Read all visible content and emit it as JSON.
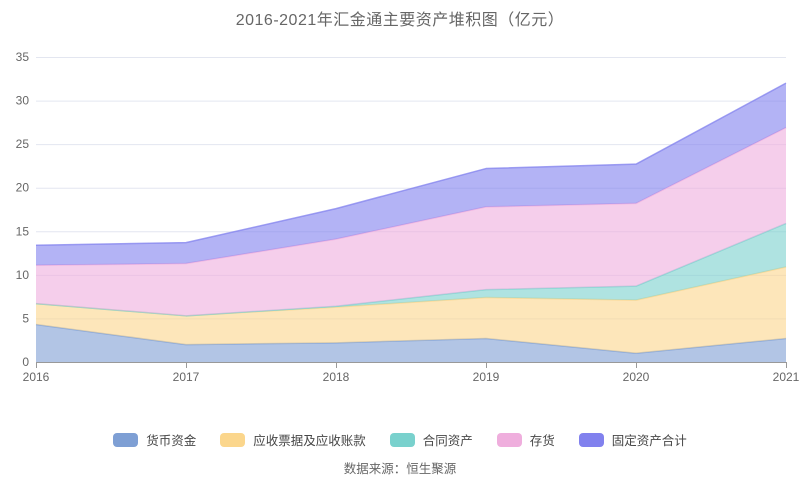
{
  "title": "2016-2021年汇金通主要资产堆积图（亿元）",
  "source": "数据来源：恒生聚源",
  "chart_data": {
    "type": "area",
    "stacked": true,
    "title": "2016-2021年汇金通主要资产堆积图（亿元）",
    "unit": "亿元",
    "categories": [
      "2016",
      "2017",
      "2018",
      "2019",
      "2020",
      "2021"
    ],
    "series": [
      {
        "name": "货币资金",
        "color": "#7E9FD4",
        "values": [
          4.3,
          2.0,
          2.2,
          2.7,
          1.0,
          2.7
        ]
      },
      {
        "name": "应收票据及应收账款",
        "color": "#FBD68C",
        "values": [
          2.4,
          3.3,
          4.1,
          4.7,
          6.1,
          8.2
        ]
      },
      {
        "name": "合同资产",
        "color": "#79D1CD",
        "values": [
          0.0,
          0.0,
          0.1,
          0.9,
          1.6,
          5.0
        ]
      },
      {
        "name": "存货",
        "color": "#EFAEDD",
        "values": [
          4.4,
          6.0,
          7.7,
          9.5,
          9.5,
          11.0
        ]
      },
      {
        "name": "固定资产合计",
        "color": "#8181EE",
        "values": [
          2.3,
          2.4,
          3.5,
          4.4,
          4.5,
          5.1
        ]
      }
    ],
    "stack_totals": [
      13.4,
      13.7,
      17.6,
      22.2,
      22.7,
      32.0
    ],
    "ylim": [
      0,
      35
    ],
    "ytick_step": 5,
    "grid": true,
    "legend_position": "bottom",
    "colors": {
      "grid_line": "#e3e6f0",
      "axis_line": "#999999",
      "tick_label": "#666666",
      "title_text": "#666666",
      "legend_text": "#464646"
    }
  }
}
